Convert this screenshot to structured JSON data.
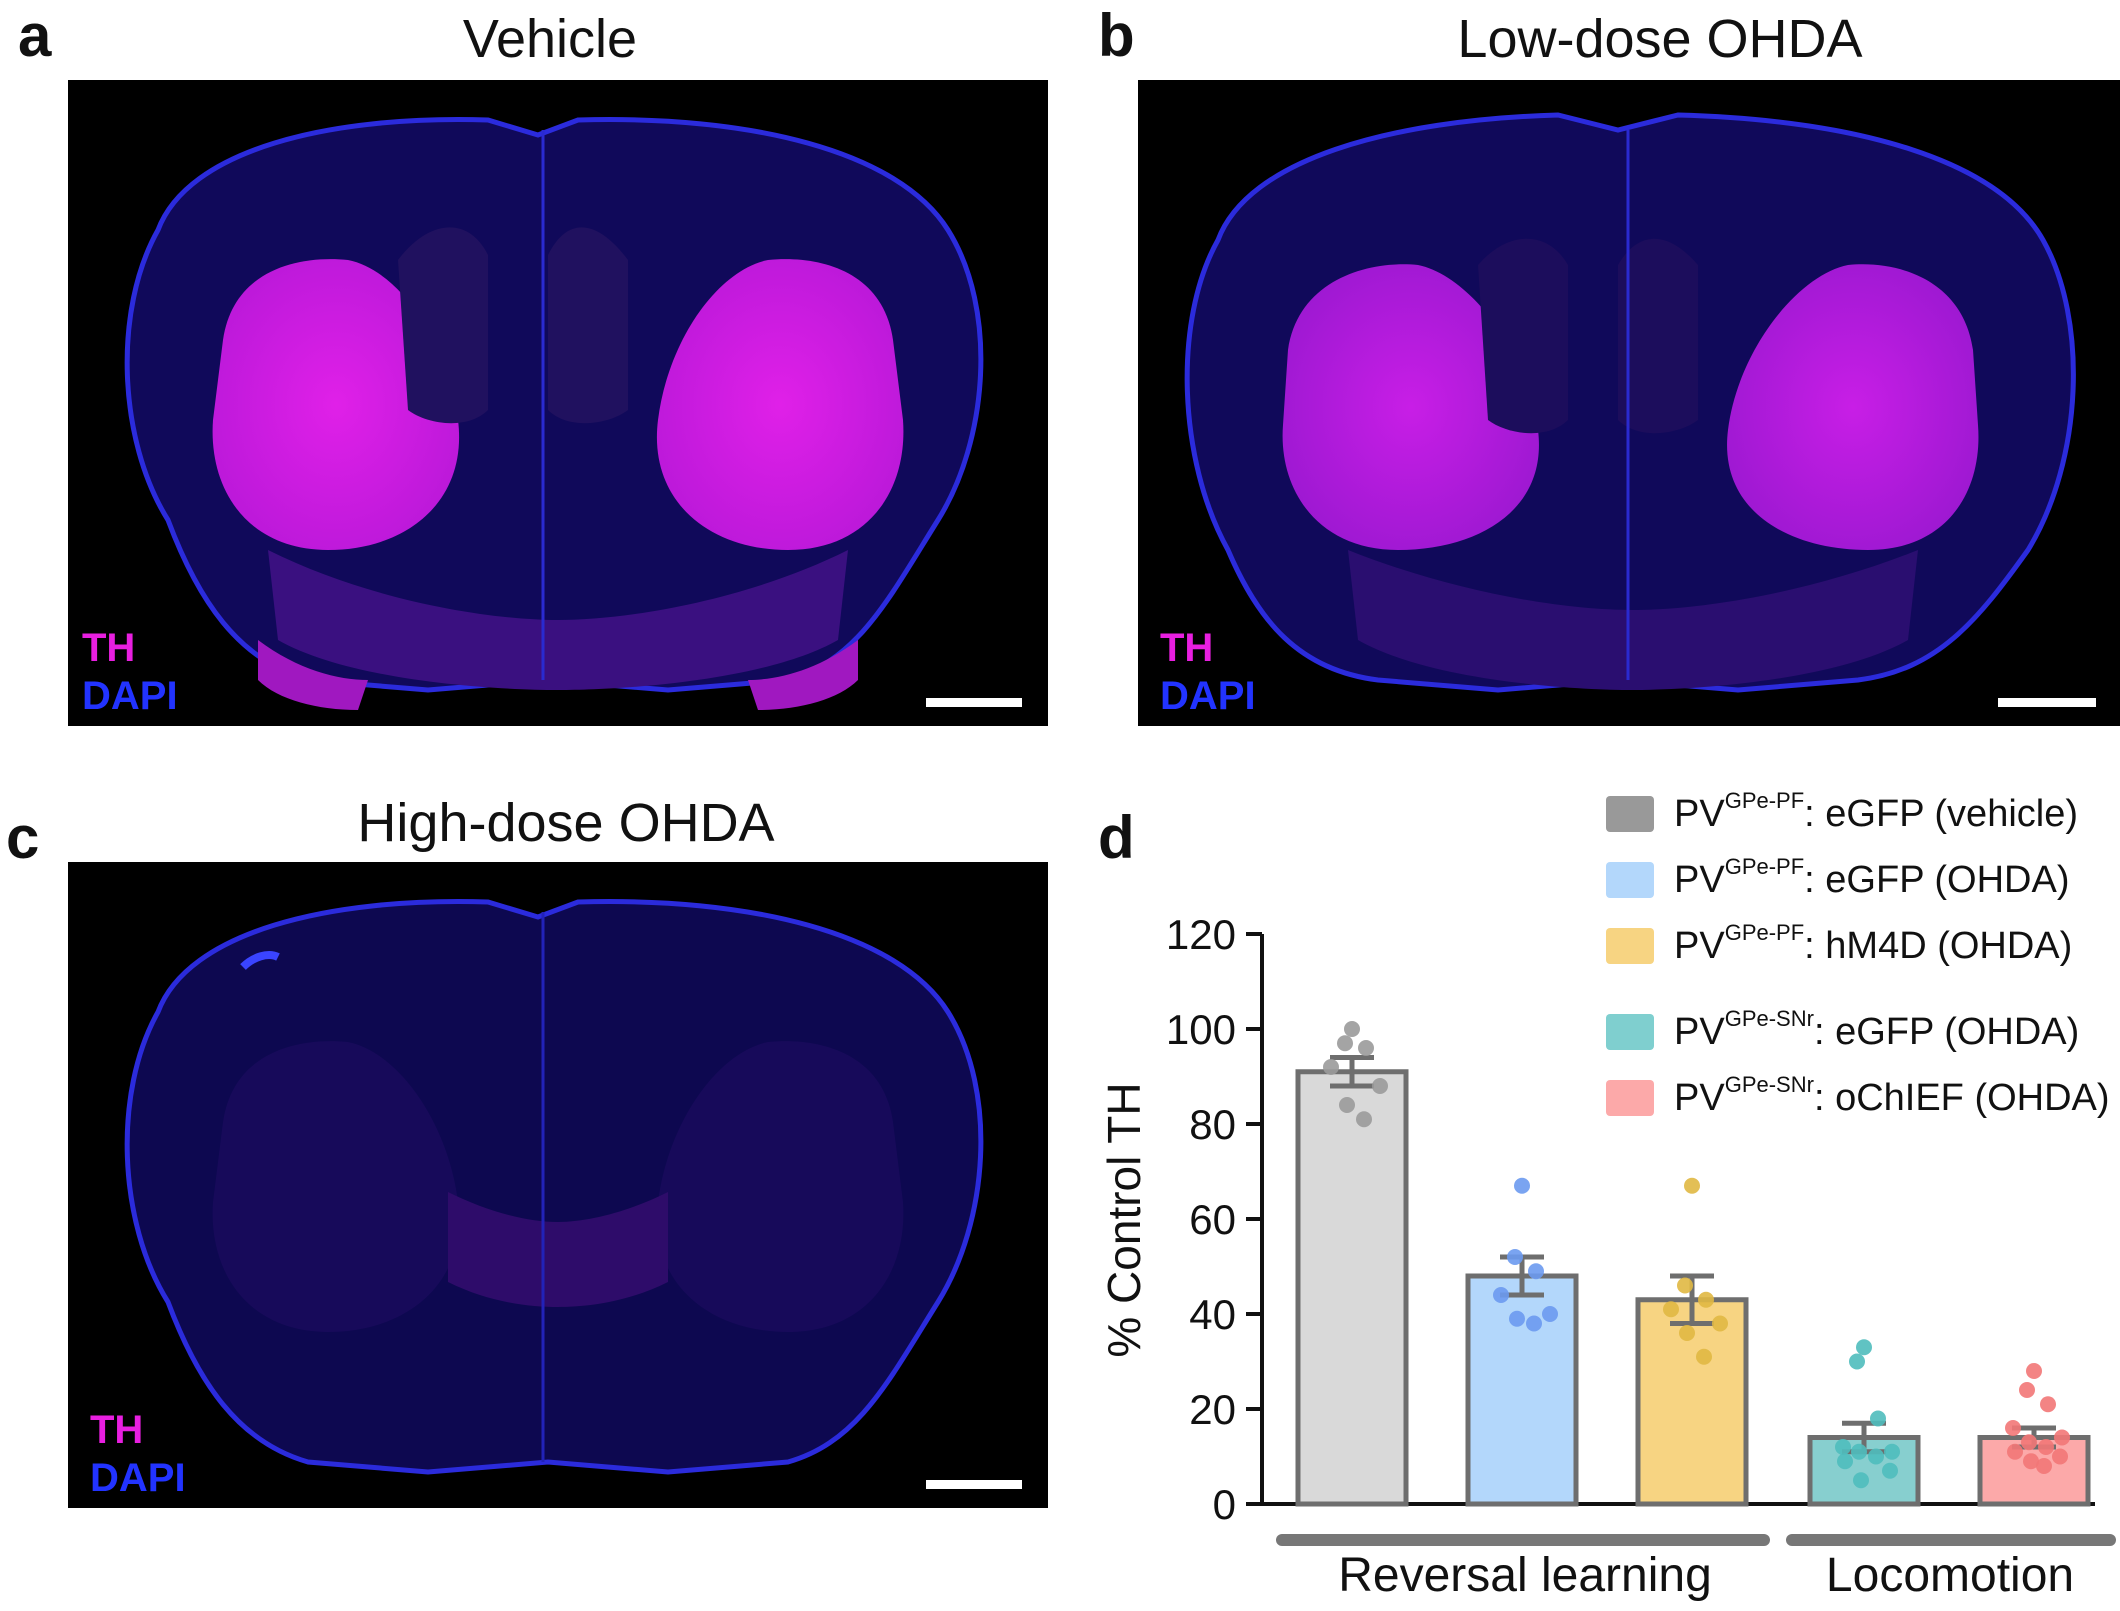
{
  "panels": {
    "a": {
      "letter": "a",
      "title": "Vehicle",
      "stains": {
        "th": "TH",
        "dapi": "DAPI"
      }
    },
    "b": {
      "letter": "b",
      "title": "Low-dose OHDA",
      "stains": {
        "th": "TH",
        "dapi": "DAPI"
      }
    },
    "c": {
      "letter": "c",
      "title": "High-dose OHDA",
      "stains": {
        "th": "TH",
        "dapi": "DAPI"
      }
    },
    "d": {
      "letter": "d"
    }
  },
  "colors": {
    "th": "#e81fe0",
    "dapi": "#2233ff",
    "tissue": "#0f0a55",
    "tissue_edge": "#2a2ad8",
    "striatum_bright": "#d01ae0",
    "striatum_mid": "#a61ad6"
  },
  "chart_data": {
    "type": "bar",
    "ylabel": "% Control TH",
    "ylim": [
      0,
      120
    ],
    "yticks": [
      "0",
      "20",
      "40",
      "60",
      "80",
      "100",
      "120"
    ],
    "series": [
      {
        "prefix": "PV",
        "superscript": "GPe-PF",
        "suffix": ": eGFP (vehicle)",
        "mean": 91,
        "sem": 3,
        "fill": "#d9d9d9",
        "dot": "#9a9a9a",
        "swatch": "#999999",
        "points": [
          100,
          97,
          96,
          92,
          88,
          84,
          81
        ]
      },
      {
        "prefix": "PV",
        "superscript": "GPe-PF",
        "suffix": ": eGFP (OHDA)",
        "mean": 48,
        "sem": 4,
        "fill": "#b3d7fb",
        "dot": "#6b9af0",
        "swatch": "#b3d7fb",
        "points": [
          67,
          52,
          49,
          44,
          40,
          39,
          38
        ]
      },
      {
        "prefix": "PV",
        "superscript": "GPe-PF",
        "suffix": ": hM4D (OHDA)",
        "mean": 43,
        "sem": 5,
        "fill": "#f7d482",
        "dot": "#e0b843",
        "swatch": "#f7d482",
        "points": [
          67,
          46,
          43,
          41,
          38,
          36,
          31
        ]
      },
      {
        "prefix": "PV",
        "superscript": "GPe-SNr",
        "suffix": ": eGFP (OHDA)",
        "mean": 14,
        "sem": 3,
        "fill": "#87cfcf",
        "dot": "#4fbcbc",
        "swatch": "#7fcfcf",
        "points": [
          33,
          30,
          18,
          12,
          11,
          11,
          10,
          9,
          7,
          5
        ]
      },
      {
        "prefix": "PV",
        "superscript": "GPe-SNr",
        "suffix": ": oChIEF (OHDA)",
        "mean": 14,
        "sem": 2,
        "fill": "#fca9a9",
        "dot": "#f27777",
        "swatch": "#fca9a9",
        "points": [
          28,
          24,
          21,
          16,
          14,
          13,
          12,
          11,
          10,
          9,
          8
        ]
      }
    ],
    "groups": [
      {
        "label": "Reversal learning",
        "bars": [
          0,
          1,
          2
        ]
      },
      {
        "label": "Locomotion",
        "bars": [
          3,
          4
        ]
      }
    ]
  }
}
